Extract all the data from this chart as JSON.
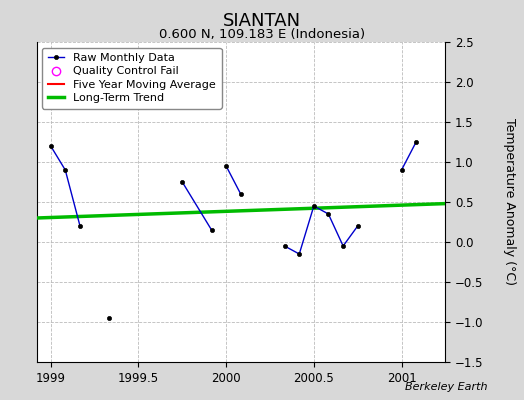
{
  "title": "SIANTAN",
  "subtitle": "0.600 N, 109.183 E (Indonesia)",
  "ylabel": "Temperature Anomaly (°C)",
  "watermark": "Berkeley Earth",
  "raw_x": [
    1999.0,
    1999.083,
    1999.167,
    null,
    1999.75,
    1999.917,
    null,
    2000.0,
    2000.083,
    null,
    2000.333,
    2000.417,
    2000.5,
    2000.583,
    2000.667,
    2000.75,
    null,
    2001.0,
    2001.083
  ],
  "raw_y": [
    1.2,
    0.9,
    0.2,
    null,
    0.75,
    0.15,
    null,
    0.95,
    0.6,
    null,
    -0.05,
    -0.15,
    0.45,
    0.35,
    -0.05,
    0.2,
    null,
    0.9,
    1.25
  ],
  "isolated_x": [
    1999.33
  ],
  "isolated_y": [
    -0.95
  ],
  "trend_x": [
    1998.92,
    2001.25
  ],
  "trend_y": [
    0.3,
    0.48
  ],
  "xlim": [
    1998.92,
    2001.25
  ],
  "ylim": [
    -1.5,
    2.5
  ],
  "xticks": [
    1999,
    1999.5,
    2000,
    2000.5,
    2001
  ],
  "yticks": [
    -1.5,
    -1.0,
    -0.5,
    0.0,
    0.5,
    1.0,
    1.5,
    2.0,
    2.5
  ],
  "raw_color": "#0000cc",
  "trend_color": "#00bb00",
  "mavg_color": "#ff0000",
  "bg_color": "#d8d8d8",
  "plot_bg_color": "#ffffff",
  "title_fontsize": 13,
  "subtitle_fontsize": 9.5,
  "label_fontsize": 9
}
